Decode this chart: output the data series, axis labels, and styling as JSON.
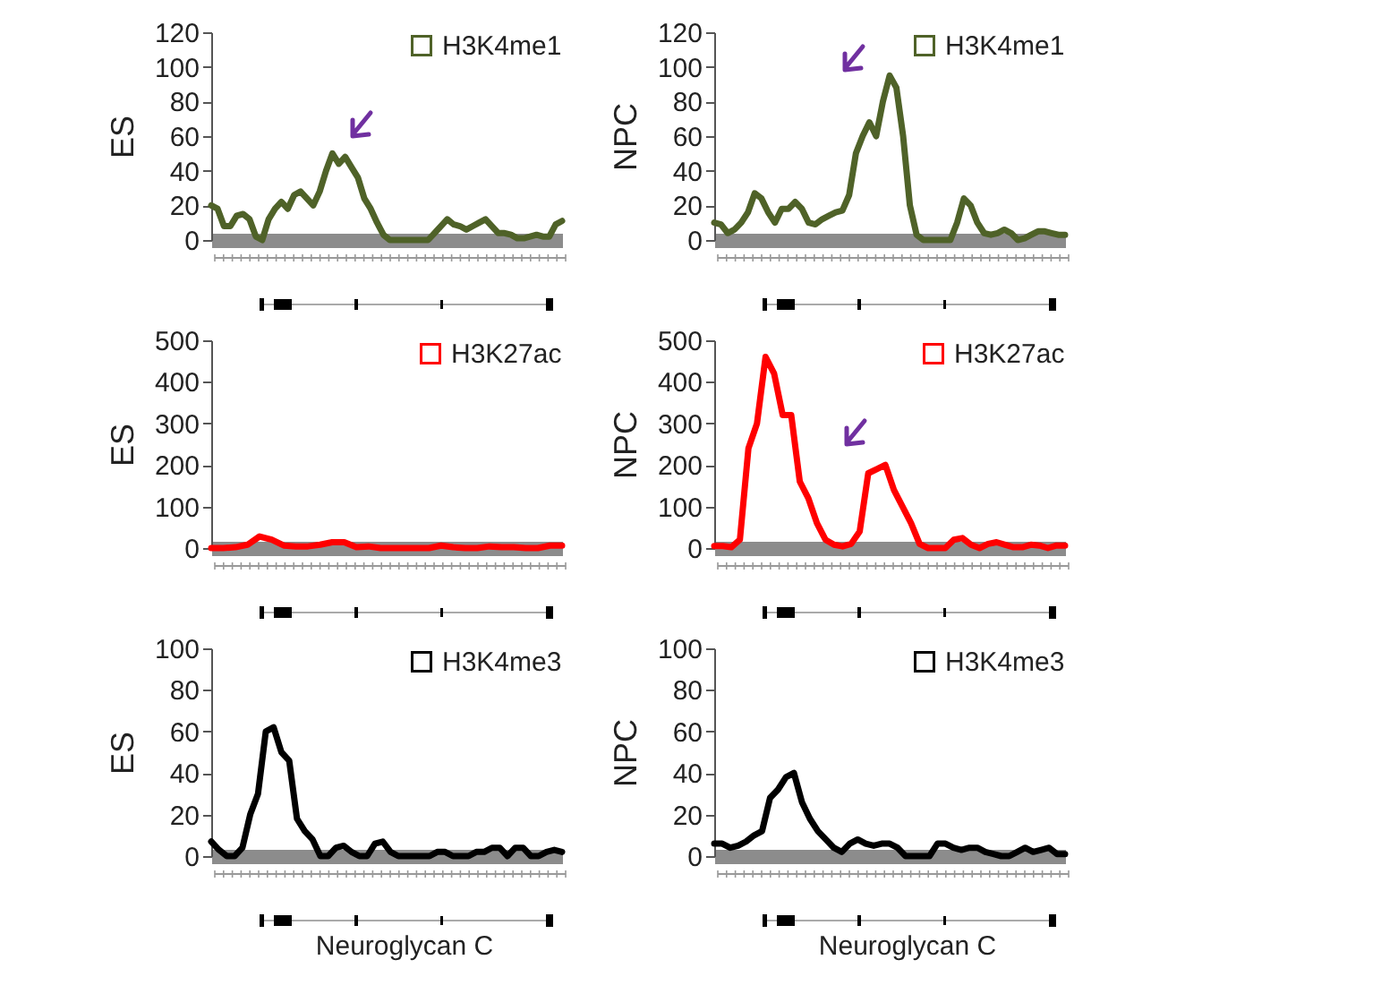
{
  "chart_data": [
    {
      "type": "line",
      "ylabel": "ES",
      "legend": "top right",
      "tick_labels": "y",
      "ylim": [
        0,
        120
      ],
      "yticks": [
        0,
        20,
        40,
        60,
        80,
        100,
        120
      ],
      "categories": [
        null,
        null,
        null,
        null,
        null,
        null,
        null,
        null,
        null,
        null,
        null,
        null,
        null,
        null,
        null,
        null,
        null,
        null,
        null,
        null,
        null,
        null,
        null,
        null,
        null,
        null,
        null,
        null,
        null,
        null,
        null,
        null,
        null,
        null,
        null,
        null,
        null,
        null,
        null,
        null,
        null,
        null,
        null,
        null,
        null,
        null,
        null,
        null,
        null,
        null,
        null,
        null,
        null,
        null,
        null,
        null
      ],
      "series": [
        {
          "name": "H3K4me1",
          "color": "#4f6228",
          "values": [
            20,
            18,
            8,
            8,
            14,
            15,
            12,
            2,
            0,
            12,
            18,
            22,
            18,
            26,
            28,
            24,
            20,
            28,
            40,
            50,
            44,
            48,
            42,
            36,
            24,
            18,
            10,
            3,
            0,
            0,
            0,
            0,
            0,
            0,
            0,
            4,
            8,
            12,
            9,
            8,
            6,
            8,
            10,
            12,
            8,
            4,
            4,
            3,
            1,
            1,
            2,
            3,
            2,
            2,
            9,
            11
          ]
        }
      ]
    },
    {
      "type": "line",
      "ylabel": "NPC",
      "legend": "top right",
      "tick_labels": "y",
      "ylim": [
        0,
        120
      ],
      "yticks": [
        0,
        20,
        40,
        60,
        80,
        100,
        120
      ],
      "categories": [
        null,
        null,
        null,
        null,
        null,
        null,
        null,
        null,
        null,
        null,
        null,
        null,
        null,
        null,
        null,
        null,
        null,
        null,
        null,
        null,
        null,
        null,
        null,
        null,
        null,
        null,
        null,
        null,
        null,
        null,
        null,
        null,
        null,
        null,
        null,
        null,
        null,
        null,
        null,
        null,
        null,
        null,
        null,
        null,
        null,
        null,
        null,
        null,
        null,
        null,
        null,
        null,
        null
      ],
      "series": [
        {
          "name": "H3K4me1",
          "color": "#4f6228",
          "values": [
            10,
            9,
            4,
            6,
            10,
            16,
            27,
            24,
            16,
            10,
            18,
            18,
            22,
            18,
            10,
            9,
            12,
            14,
            16,
            17,
            26,
            50,
            60,
            68,
            60,
            80,
            95,
            88,
            60,
            20,
            3,
            0,
            0,
            0,
            0,
            0,
            10,
            24,
            20,
            10,
            4,
            3,
            4,
            6,
            4,
            0,
            1,
            3,
            5,
            5,
            4,
            3,
            3
          ]
        }
      ]
    },
    {
      "type": "line",
      "ylabel": "ES",
      "legend": "top right",
      "tick_labels": "y",
      "ylim": [
        0,
        500
      ],
      "yticks": [
        0,
        100,
        200,
        300,
        400,
        500
      ],
      "categories": [
        null,
        null,
        null,
        null,
        null,
        null,
        null,
        null,
        null,
        null,
        null,
        null,
        null,
        null,
        null,
        null,
        null,
        null,
        null,
        null,
        null,
        null,
        null,
        null,
        null,
        null,
        null,
        null,
        null,
        null
      ],
      "series": [
        {
          "name": "H3K27ac",
          "color": "#ff0000",
          "values": [
            0,
            0,
            2,
            8,
            28,
            20,
            6,
            4,
            4,
            8,
            14,
            14,
            2,
            4,
            0,
            0,
            0,
            0,
            0,
            6,
            2,
            0,
            0,
            4,
            2,
            2,
            0,
            0,
            6,
            6
          ]
        }
      ]
    },
    {
      "type": "line",
      "ylabel": "NPC",
      "legend": "top right",
      "tick_labels": "y",
      "ylim": [
        0,
        500
      ],
      "yticks": [
        0,
        100,
        200,
        300,
        400,
        500
      ],
      "categories": [
        null,
        null,
        null,
        null,
        null,
        null,
        null,
        null,
        null,
        null,
        null,
        null,
        null,
        null,
        null,
        null,
        null,
        null,
        null,
        null,
        null,
        null,
        null,
        null,
        null,
        null,
        null,
        null,
        null,
        null,
        null,
        null,
        null,
        null,
        null,
        null,
        null,
        null,
        null,
        null,
        null,
        null
      ],
      "series": [
        {
          "name": "H3K27ac",
          "color": "#ff0000",
          "values": [
            5,
            5,
            2,
            20,
            240,
            300,
            460,
            420,
            320,
            320,
            160,
            120,
            60,
            20,
            8,
            4,
            10,
            40,
            180,
            190,
            200,
            140,
            100,
            60,
            10,
            0,
            0,
            0,
            20,
            24,
            8,
            0,
            10,
            14,
            8,
            2,
            2,
            8,
            6,
            0,
            6,
            6
          ]
        }
      ]
    },
    {
      "type": "line",
      "ylabel": "ES",
      "xlabel": "Neuroglycan C",
      "legend": "top right",
      "tick_labels": "y",
      "ylim": [
        0,
        100
      ],
      "yticks": [
        0,
        20,
        40,
        60,
        80,
        100
      ],
      "categories": [
        null,
        null,
        null,
        null,
        null,
        null,
        null,
        null,
        null,
        null,
        null,
        null,
        null,
        null,
        null,
        null,
        null,
        null,
        null,
        null,
        null,
        null,
        null,
        null,
        null,
        null,
        null,
        null,
        null,
        null,
        null,
        null,
        null,
        null,
        null,
        null,
        null,
        null,
        null,
        null,
        null,
        null,
        null,
        null,
        null,
        null
      ],
      "series": [
        {
          "name": "H3K4me3",
          "color": "#000000",
          "values": [
            7,
            3,
            0,
            0,
            4,
            20,
            30,
            60,
            62,
            50,
            46,
            18,
            12,
            8,
            0,
            0,
            4,
            5,
            2,
            0,
            0,
            6,
            7,
            2,
            0,
            0,
            0,
            0,
            0,
            2,
            2,
            0,
            0,
            0,
            2,
            2,
            4,
            4,
            0,
            4,
            4,
            0,
            0,
            2,
            3,
            2
          ]
        }
      ]
    },
    {
      "type": "line",
      "ylabel": "NPC",
      "xlabel": "Neuroglycan C",
      "legend": "top right",
      "tick_labels": "y",
      "ylim": [
        0,
        100
      ],
      "yticks": [
        0,
        20,
        40,
        60,
        80,
        100
      ],
      "categories": [
        null,
        null,
        null,
        null,
        null,
        null,
        null,
        null,
        null,
        null,
        null,
        null,
        null,
        null,
        null,
        null,
        null,
        null,
        null,
        null,
        null,
        null,
        null,
        null,
        null,
        null,
        null,
        null,
        null,
        null,
        null,
        null,
        null,
        null,
        null,
        null,
        null,
        null,
        null,
        null,
        null,
        null,
        null,
        null,
        null
      ],
      "series": [
        {
          "name": "H3K4me3",
          "color": "#000000",
          "values": [
            6,
            6,
            4,
            5,
            7,
            10,
            12,
            28,
            32,
            38,
            40,
            26,
            18,
            12,
            8,
            4,
            2,
            6,
            8,
            6,
            5,
            6,
            6,
            4,
            0,
            0,
            0,
            0,
            6,
            6,
            4,
            3,
            4,
            4,
            2,
            1,
            0,
            0,
            2,
            4,
            2,
            3,
            4,
            1,
            1
          ]
        }
      ]
    }
  ]
}
